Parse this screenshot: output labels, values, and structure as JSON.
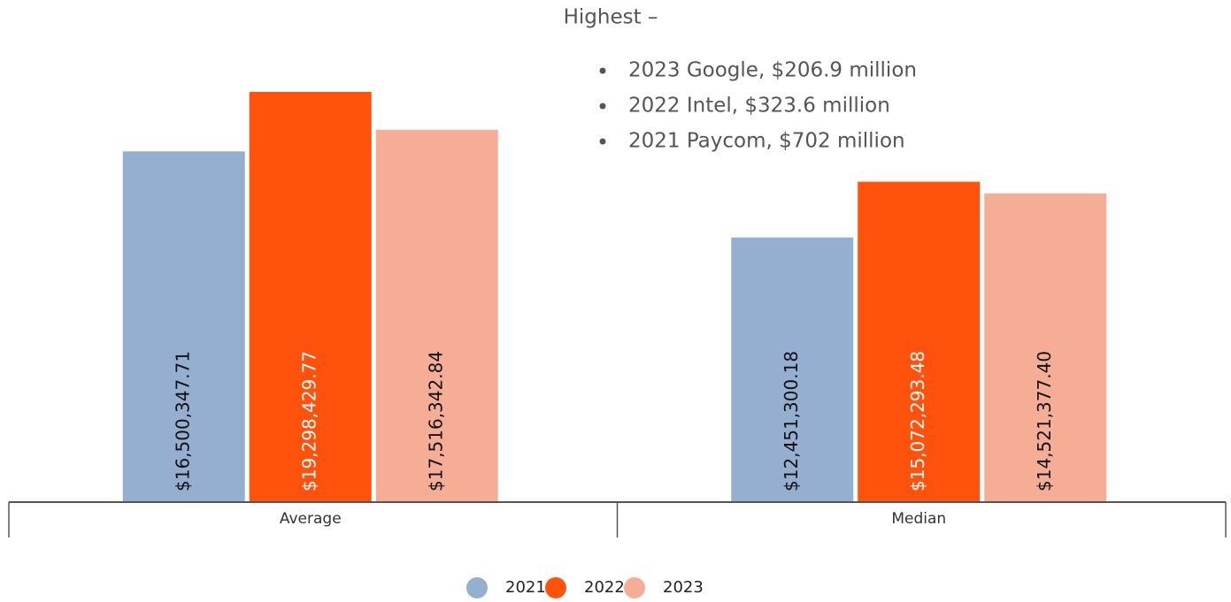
{
  "chart_data": {
    "type": "bar",
    "annotation": {
      "title": "Highest –",
      "items": [
        "2023 Google, $206.9 million",
        "2022 Intel, $323.6 million",
        "2021 Paycom, $702 million"
      ]
    },
    "categories": [
      "Average",
      "Median"
    ],
    "series": [
      {
        "name": "2021",
        "color": "#95afd0",
        "values": [
          16500347.71,
          12451300.18
        ],
        "value_labels": [
          "$16,500,347.71",
          "$12,451,300.18"
        ]
      },
      {
        "name": "2022",
        "color": "#ff530d",
        "values": [
          19298429.77,
          15072293.48
        ],
        "value_labels": [
          "$19,298,429.77",
          "$15,072,293.48"
        ]
      },
      {
        "name": "2023",
        "color": "#f5ae95",
        "values": [
          17516342.84,
          14521377.4
        ],
        "value_labels": [
          "$17,516,342.84",
          "$14,521,377.40"
        ]
      }
    ]
  }
}
